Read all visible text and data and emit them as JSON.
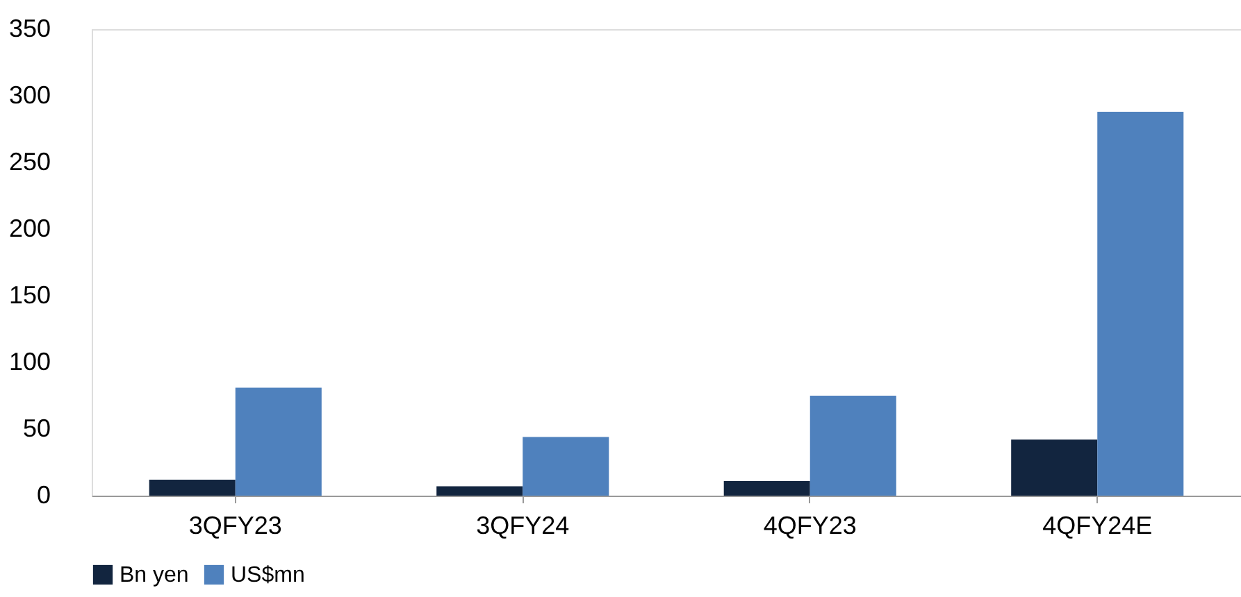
{
  "chart_data": {
    "type": "bar",
    "categories": [
      "3QFY23",
      "3QFY24",
      "4QFY23",
      "4QFY24E"
    ],
    "series": [
      {
        "name": "Bn yen",
        "color": "#12253f",
        "values": [
          12,
          7,
          11,
          42
        ]
      },
      {
        "name": "US$mn",
        "color": "#4f81bd",
        "values": [
          81,
          44,
          75,
          288
        ]
      }
    ],
    "ylim": [
      0,
      350
    ],
    "yticks": [
      0,
      50,
      100,
      150,
      200,
      250,
      300,
      350
    ],
    "grid": false,
    "legend": "bottom"
  }
}
